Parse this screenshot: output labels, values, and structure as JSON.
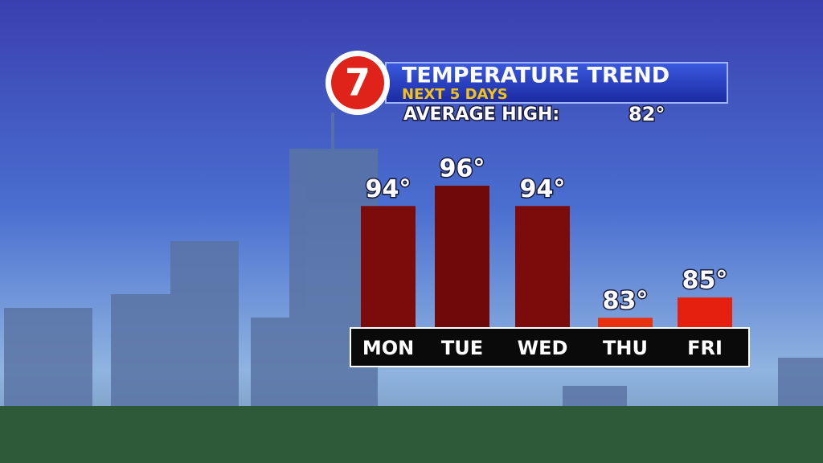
{
  "chart_data": {
    "type": "bar",
    "logo": "7",
    "title": "TEMPERATURE TREND",
    "subtitle": "NEXT 5 DAYS",
    "average_high_label": "AVERAGE HIGH:",
    "average_high": 82,
    "average_high_value_label": "82°",
    "categories": [
      "MON",
      "TUE",
      "WED",
      "THU",
      "FRI"
    ],
    "values": [
      94,
      96,
      94,
      83,
      85
    ],
    "value_labels": [
      "94°",
      "96°",
      "94°",
      "83°",
      "85°"
    ],
    "colors": [
      "#7c0b0b",
      "#700a0a",
      "#7c0b0b",
      "#e8320f",
      "#e5200f"
    ]
  }
}
